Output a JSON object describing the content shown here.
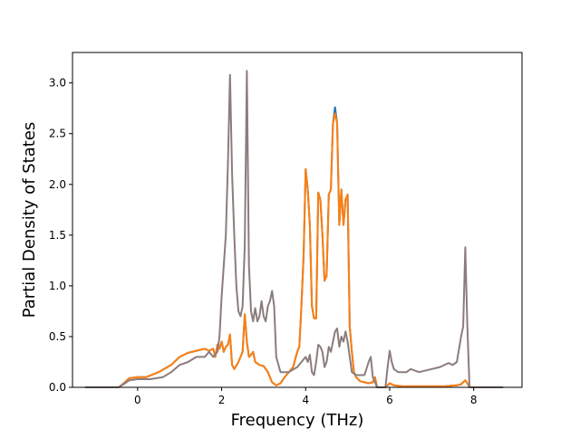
{
  "chart_data": {
    "type": "line",
    "title": "",
    "xlabel": "Frequency (THz)",
    "ylabel": "Partial Density of States",
    "xlim": [
      -1.55,
      9.15
    ],
    "ylim": [
      0.0,
      3.3
    ],
    "xticks": [
      0,
      2,
      4,
      6,
      8
    ],
    "yticks": [
      0.0,
      0.5,
      1.0,
      1.5,
      2.0,
      2.5,
      3.0
    ],
    "xtick_labels": [
      "0",
      "2",
      "4",
      "6",
      "8"
    ],
    "ytick_labels": [
      "0.0",
      "0.5",
      "1.0",
      "1.5",
      "2.0",
      "2.5",
      "3.0"
    ],
    "grid": false,
    "legend": "none",
    "series": [
      {
        "color": "#1f77b4",
        "x": [
          -1.25,
          -0.45,
          -0.3,
          -0.2,
          0.0,
          0.2,
          0.5,
          0.8,
          1.0,
          1.2,
          1.4,
          1.6,
          1.7,
          1.8,
          1.85,
          1.9,
          1.95,
          2.0,
          2.05,
          2.1,
          2.15,
          2.2,
          2.25,
          2.3,
          2.4,
          2.5,
          2.55,
          2.6,
          2.65,
          2.7,
          2.75,
          2.8,
          2.9,
          3.0,
          3.1,
          3.2,
          3.3,
          3.4,
          3.5,
          3.6,
          3.7,
          3.8,
          3.85,
          3.9,
          3.95,
          4.0,
          4.05,
          4.1,
          4.15,
          4.2,
          4.25,
          4.3,
          4.35,
          4.4,
          4.45,
          4.5,
          4.55,
          4.6,
          4.65,
          4.7,
          4.75,
          4.8,
          4.85,
          4.9,
          4.95,
          5.0,
          5.05,
          5.1,
          5.15,
          5.2,
          5.3,
          5.4,
          5.5,
          5.6,
          5.65,
          5.7,
          5.9,
          5.95,
          6.0,
          6.1,
          6.3,
          6.5,
          6.8,
          7.0,
          7.3,
          7.6,
          7.7,
          7.75,
          7.8,
          7.85,
          7.9,
          8.7
        ],
        "y": [
          0.0,
          0.0,
          0.05,
          0.09,
          0.1,
          0.1,
          0.15,
          0.22,
          0.3,
          0.34,
          0.36,
          0.38,
          0.36,
          0.38,
          0.3,
          0.42,
          0.38,
          0.45,
          0.35,
          0.4,
          0.42,
          0.52,
          0.22,
          0.18,
          0.25,
          0.35,
          0.72,
          0.45,
          0.3,
          0.32,
          0.35,
          0.25,
          0.22,
          0.21,
          0.15,
          0.05,
          0.02,
          0.04,
          0.1,
          0.15,
          0.2,
          0.35,
          0.4,
          0.8,
          1.3,
          2.15,
          1.95,
          1.6,
          0.8,
          0.68,
          0.68,
          1.92,
          1.85,
          1.5,
          1.05,
          1.1,
          1.9,
          1.95,
          2.6,
          2.76,
          2.6,
          1.6,
          1.95,
          1.6,
          1.85,
          1.9,
          0.6,
          0.35,
          0.15,
          0.1,
          0.06,
          0.05,
          0.04,
          0.05,
          0.1,
          0.0,
          0.0,
          0.02,
          0.04,
          0.02,
          0.01,
          0.01,
          0.01,
          0.01,
          0.01,
          0.02,
          0.03,
          0.05,
          0.07,
          0.04,
          0.0,
          0.0
        ]
      },
      {
        "color": "#ff7f0e",
        "x": [
          -1.25,
          -0.45,
          -0.3,
          -0.2,
          0.0,
          0.2,
          0.5,
          0.8,
          1.0,
          1.2,
          1.4,
          1.6,
          1.7,
          1.8,
          1.85,
          1.9,
          1.95,
          2.0,
          2.05,
          2.1,
          2.15,
          2.2,
          2.25,
          2.3,
          2.4,
          2.5,
          2.55,
          2.6,
          2.65,
          2.7,
          2.75,
          2.8,
          2.9,
          3.0,
          3.1,
          3.2,
          3.3,
          3.4,
          3.5,
          3.6,
          3.7,
          3.8,
          3.85,
          3.9,
          3.95,
          4.0,
          4.05,
          4.1,
          4.15,
          4.2,
          4.25,
          4.3,
          4.35,
          4.4,
          4.45,
          4.5,
          4.55,
          4.6,
          4.65,
          4.7,
          4.75,
          4.8,
          4.85,
          4.9,
          4.95,
          5.0,
          5.05,
          5.1,
          5.15,
          5.2,
          5.3,
          5.4,
          5.5,
          5.6,
          5.65,
          5.7,
          5.9,
          5.95,
          6.0,
          6.1,
          6.3,
          6.5,
          6.8,
          7.0,
          7.3,
          7.6,
          7.7,
          7.75,
          7.8,
          7.85,
          7.9,
          8.7
        ],
        "y": [
          0.0,
          0.0,
          0.05,
          0.09,
          0.1,
          0.1,
          0.15,
          0.22,
          0.3,
          0.34,
          0.36,
          0.38,
          0.36,
          0.38,
          0.3,
          0.42,
          0.38,
          0.45,
          0.35,
          0.4,
          0.42,
          0.52,
          0.22,
          0.18,
          0.25,
          0.35,
          0.72,
          0.45,
          0.3,
          0.32,
          0.35,
          0.25,
          0.22,
          0.21,
          0.15,
          0.05,
          0.02,
          0.04,
          0.1,
          0.15,
          0.2,
          0.35,
          0.4,
          0.8,
          1.3,
          2.15,
          1.95,
          1.6,
          0.8,
          0.68,
          0.68,
          1.92,
          1.85,
          1.5,
          1.05,
          1.1,
          1.9,
          1.95,
          2.6,
          2.7,
          2.6,
          1.6,
          1.95,
          1.6,
          1.85,
          1.9,
          0.6,
          0.35,
          0.15,
          0.1,
          0.06,
          0.05,
          0.04,
          0.05,
          0.1,
          0.0,
          0.0,
          0.02,
          0.04,
          0.02,
          0.01,
          0.01,
          0.01,
          0.01,
          0.01,
          0.02,
          0.03,
          0.05,
          0.07,
          0.04,
          0.0,
          0.0
        ]
      },
      {
        "color": "#8c7c7c",
        "x": [
          -1.25,
          -0.45,
          -0.3,
          -0.2,
          0.0,
          0.3,
          0.6,
          0.8,
          1.0,
          1.2,
          1.4,
          1.6,
          1.7,
          1.8,
          1.9,
          1.95,
          2.0,
          2.05,
          2.1,
          2.15,
          2.2,
          2.25,
          2.3,
          2.35,
          2.4,
          2.45,
          2.5,
          2.55,
          2.6,
          2.65,
          2.7,
          2.75,
          2.8,
          2.85,
          2.9,
          2.95,
          3.0,
          3.05,
          3.1,
          3.15,
          3.2,
          3.25,
          3.3,
          3.4,
          3.6,
          3.8,
          3.9,
          4.0,
          4.05,
          4.1,
          4.15,
          4.2,
          4.25,
          4.3,
          4.35,
          4.4,
          4.45,
          4.5,
          4.55,
          4.6,
          4.65,
          4.7,
          4.75,
          4.8,
          4.85,
          4.9,
          4.95,
          5.0,
          5.05,
          5.1,
          5.2,
          5.3,
          5.4,
          5.5,
          5.55,
          5.6,
          5.65,
          5.7,
          5.9,
          5.95,
          6.0,
          6.05,
          6.1,
          6.2,
          6.4,
          6.5,
          6.7,
          7.0,
          7.2,
          7.4,
          7.5,
          7.6,
          7.7,
          7.75,
          7.8,
          7.85,
          7.9,
          8.7
        ],
        "y": [
          0.0,
          0.0,
          0.04,
          0.07,
          0.08,
          0.08,
          0.1,
          0.15,
          0.22,
          0.25,
          0.3,
          0.3,
          0.35,
          0.3,
          0.35,
          0.5,
          0.9,
          1.2,
          1.5,
          2.2,
          3.08,
          2.1,
          1.5,
          1.0,
          0.75,
          0.7,
          0.8,
          1.4,
          3.12,
          1.2,
          0.75,
          0.65,
          0.78,
          0.65,
          0.7,
          0.85,
          0.7,
          0.65,
          0.8,
          0.85,
          0.95,
          0.8,
          0.3,
          0.15,
          0.15,
          0.2,
          0.25,
          0.3,
          0.25,
          0.32,
          0.15,
          0.12,
          0.25,
          0.42,
          0.4,
          0.35,
          0.2,
          0.25,
          0.4,
          0.35,
          0.45,
          0.55,
          0.58,
          0.4,
          0.5,
          0.45,
          0.55,
          0.45,
          0.3,
          0.15,
          0.12,
          0.12,
          0.12,
          0.25,
          0.3,
          0.1,
          0.05,
          0.0,
          0.0,
          0.2,
          0.36,
          0.25,
          0.18,
          0.15,
          0.15,
          0.18,
          0.15,
          0.18,
          0.2,
          0.24,
          0.22,
          0.25,
          0.5,
          0.6,
          1.38,
          0.6,
          0.0,
          0.0
        ]
      }
    ]
  }
}
